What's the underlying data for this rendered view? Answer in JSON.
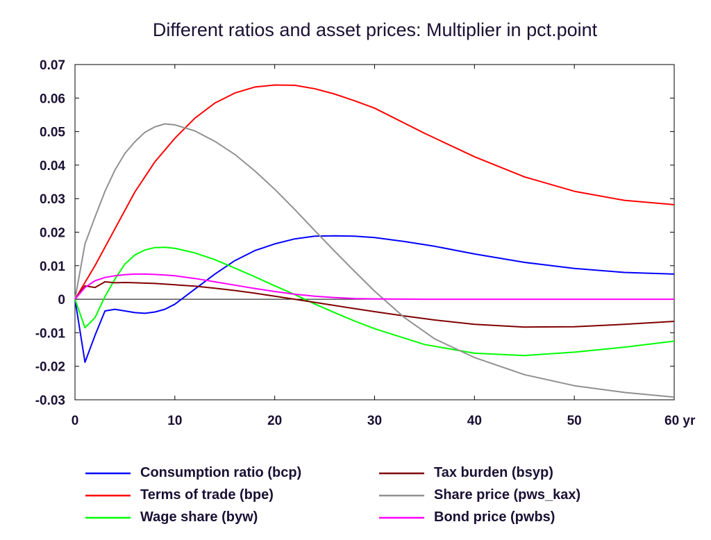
{
  "chart_data": {
    "type": "line",
    "title": "Different ratios and asset prices: Multiplier in pct.point",
    "xlabel": "",
    "ylabel": "",
    "x_unit_label": "yr",
    "xlim": [
      0,
      60
    ],
    "ylim": [
      -0.03,
      0.07
    ],
    "x_ticks": [
      0,
      10,
      20,
      30,
      40,
      50,
      60
    ],
    "x_tick_labels": [
      "0",
      "10",
      "20",
      "30",
      "40",
      "50",
      "60 yr"
    ],
    "y_ticks": [
      -0.03,
      -0.02,
      -0.01,
      0,
      0.01,
      0.02,
      0.03,
      0.04,
      0.05,
      0.06,
      0.07
    ],
    "y_tick_labels": [
      "-0.03",
      "-0.02",
      "-0.01",
      "0",
      "0.01",
      "0.02",
      "0.03",
      "0.04",
      "0.05",
      "0.06",
      "0.07"
    ],
    "grid": false,
    "zero_line": true,
    "legend_placement": "bottom",
    "series": [
      {
        "name": "Consumption ratio (bcp)",
        "color": "#0000ff",
        "x": [
          0,
          1,
          2,
          3,
          4,
          5,
          6,
          7,
          8,
          9,
          10,
          12,
          14,
          16,
          18,
          20,
          22,
          24,
          26,
          28,
          30,
          33,
          36,
          40,
          45,
          50,
          55,
          60
        ],
        "y": [
          0,
          -0.0188,
          -0.0108,
          -0.0035,
          -0.003,
          -0.0035,
          -0.004,
          -0.0042,
          -0.0038,
          -0.003,
          -0.0015,
          0.003,
          0.0075,
          0.0115,
          0.0145,
          0.0165,
          0.018,
          0.0188,
          0.0189,
          0.0188,
          0.0184,
          0.0172,
          0.0158,
          0.0135,
          0.011,
          0.0092,
          0.008,
          0.0075
        ]
      },
      {
        "name": "Terms of trade (bpe)",
        "color": "#ff0000",
        "x": [
          0,
          2,
          4,
          6,
          8,
          10,
          12,
          14,
          16,
          18,
          20,
          22,
          24,
          26,
          28,
          30,
          35,
          40,
          45,
          50,
          55,
          60
        ],
        "y": [
          0,
          0.01,
          0.021,
          0.032,
          0.041,
          0.048,
          0.054,
          0.0585,
          0.0615,
          0.0633,
          0.0639,
          0.0638,
          0.0628,
          0.0612,
          0.0592,
          0.057,
          0.0495,
          0.0425,
          0.0365,
          0.0322,
          0.0295,
          0.0282
        ]
      },
      {
        "name": "Wage share (byw)",
        "color": "#00ff00",
        "x": [
          0,
          1,
          2,
          3,
          4,
          5,
          6,
          7,
          8,
          9,
          10,
          12,
          14,
          16,
          18,
          20,
          22,
          24,
          26,
          28,
          30,
          35,
          40,
          45,
          50,
          55,
          60
        ],
        "y": [
          0,
          -0.0085,
          -0.0055,
          0.0008,
          0.006,
          0.0105,
          0.0132,
          0.0147,
          0.0154,
          0.0155,
          0.0152,
          0.0138,
          0.0118,
          0.0093,
          0.0067,
          0.004,
          0.0014,
          -0.0014,
          -0.004,
          -0.0065,
          -0.0088,
          -0.0135,
          -0.0161,
          -0.0168,
          -0.0158,
          -0.0143,
          -0.0125
        ]
      },
      {
        "name": "Tax burden (bsyp)",
        "color": "#800000",
        "x": [
          0,
          1,
          2,
          3,
          4,
          5,
          6,
          8,
          10,
          12,
          14,
          16,
          18,
          20,
          22,
          25,
          28,
          30,
          33,
          36,
          40,
          45,
          50,
          55,
          60
        ],
        "y": [
          0,
          0.004,
          0.0035,
          0.0052,
          0.0049,
          0.005,
          0.0049,
          0.0047,
          0.0043,
          0.0039,
          0.0033,
          0.0026,
          0.0018,
          0.0009,
          0.0,
          -0.0014,
          -0.0028,
          -0.0037,
          -0.005,
          -0.0062,
          -0.0075,
          -0.0083,
          -0.0082,
          -0.0075,
          -0.0066
        ]
      },
      {
        "name": "Share price (pws_kax)",
        "color": "#909090",
        "x": [
          0,
          1,
          2,
          3,
          4,
          5,
          6,
          7,
          8,
          9,
          10,
          12,
          14,
          16,
          18,
          20,
          22,
          24,
          26,
          28,
          30,
          33,
          36,
          40,
          45,
          50,
          55,
          60
        ],
        "y": [
          0,
          0.0165,
          0.0245,
          0.0322,
          0.0385,
          0.0435,
          0.047,
          0.0498,
          0.0514,
          0.0523,
          0.052,
          0.0502,
          0.0471,
          0.0432,
          0.0383,
          0.0328,
          0.0268,
          0.0205,
          0.0143,
          0.0083,
          0.0024,
          -0.0055,
          -0.0118,
          -0.0174,
          -0.0225,
          -0.0258,
          -0.0278,
          -0.0292
        ]
      },
      {
        "name": "Bond price (pwbs)",
        "color": "#ff00ff",
        "x": [
          0,
          1,
          2,
          3,
          4,
          5,
          6,
          7,
          8,
          9,
          10,
          12,
          14,
          16,
          18,
          20,
          22,
          24,
          26,
          28,
          30,
          35,
          40,
          45,
          50,
          55,
          60
        ],
        "y": [
          0,
          0.0035,
          0.0055,
          0.0065,
          0.007,
          0.0073,
          0.0075,
          0.0075,
          0.0074,
          0.0072,
          0.007,
          0.0062,
          0.0052,
          0.0042,
          0.0032,
          0.0023,
          0.0015,
          0.0009,
          0.0005,
          0.0002,
          0.0001,
          0.0,
          0.0,
          0.0,
          0.0,
          0.0,
          0.0
        ]
      }
    ]
  }
}
